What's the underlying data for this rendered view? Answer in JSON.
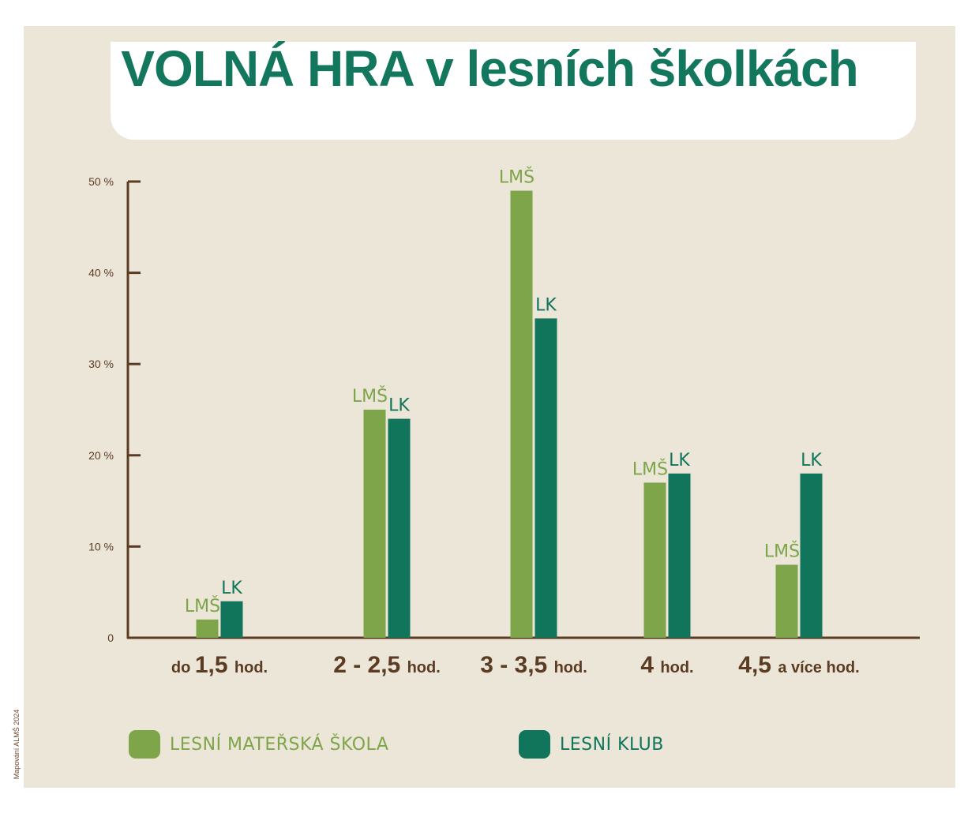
{
  "title": "VOLNÁ HRA v lesních školkách",
  "credit": "Mapování ALMŠ 2024",
  "colors": {
    "lms": "#7ea549",
    "lk": "#11755c",
    "axis": "#5b3b22",
    "tick_text": "#5b3b22",
    "title": "#13775d",
    "background": "#ebe6d8"
  },
  "legend": [
    {
      "label": "LESNÍ MATEŘSKÁ ŠKOLA",
      "color": "#7ea549"
    },
    {
      "label": "LESNÍ KLUB",
      "color": "#11755c"
    }
  ],
  "chart_data": {
    "type": "bar",
    "title": "VOLNÁ HRA v lesních školkách",
    "categories": [
      {
        "prefix": "do",
        "number": "1,5",
        "suffix": "hod."
      },
      {
        "prefix": "",
        "number": "2 - 2,5",
        "suffix": "hod."
      },
      {
        "prefix": "",
        "number": "3 - 3,5",
        "suffix": "hod."
      },
      {
        "prefix": "",
        "number": "4",
        "suffix": "hod."
      },
      {
        "prefix": "",
        "number": "4,5",
        "suffix": "a více hod."
      }
    ],
    "series": [
      {
        "name": "LMŠ",
        "values": [
          2,
          25,
          49,
          17,
          8
        ]
      },
      {
        "name": "LK",
        "values": [
          4,
          24,
          35,
          18,
          18
        ]
      }
    ],
    "yticks": [
      "0",
      "10 %",
      "20 %",
      "30 %",
      "40 %",
      "50 %"
    ],
    "ylim": [
      0,
      50
    ],
    "legend_position": "bottom",
    "grid": false
  }
}
